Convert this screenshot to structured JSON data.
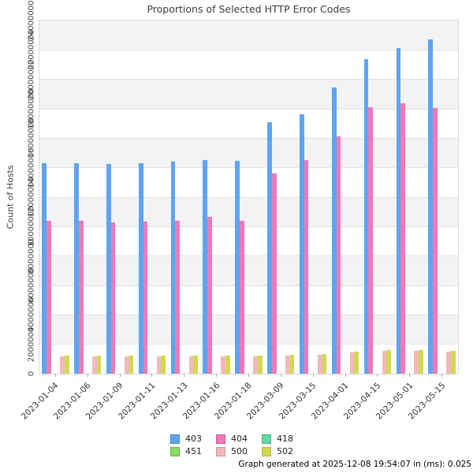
{
  "title": "Proportions of Selected HTTP Error Codes",
  "footer": "Graph generated at 2025-12-08 19:54:07 in (ms): 0.025",
  "chart_data": {
    "type": "bar",
    "title": "Proportions of Selected HTTP Error Codes",
    "xlabel": "",
    "ylabel": "Count of Hosts",
    "ylim": [
      0,
      24000000
    ],
    "ytick_step": 2000000,
    "grid": "horizontal gridlines with alternating gray bands",
    "legend_position": "bottom center, 2 rows x 3 columns",
    "categories": [
      "2023-01-04",
      "2023-01-06",
      "2023-01-09",
      "2023-01-11",
      "2023-01-13",
      "2023-01-16",
      "2023-01-18",
      "2023-03-09",
      "2023-03-15",
      "2023-04-01",
      "2023-04-15",
      "2023-05-01",
      "2023-05-15"
    ],
    "series": [
      {
        "name": "403",
        "color": "#5fa4f1",
        "border": "#4583c9",
        "values": [
          14300000,
          14300000,
          14250000,
          14300000,
          14400000,
          14500000,
          14450000,
          17100000,
          17600000,
          19450000,
          21400000,
          22150000,
          22700000
        ]
      },
      {
        "name": "404",
        "color": "#f279b6",
        "border": "#cc5e96",
        "values": [
          10400000,
          10400000,
          10300000,
          10350000,
          10400000,
          10650000,
          10400000,
          13600000,
          14500000,
          16150000,
          18100000,
          18350000,
          18050000
        ]
      },
      {
        "name": "418",
        "color": "#5fd99f",
        "border": "#45b57e",
        "values": [
          0,
          0,
          0,
          0,
          0,
          0,
          0,
          0,
          0,
          0,
          0,
          0,
          0
        ]
      },
      {
        "name": "451",
        "color": "#86db62",
        "border": "#67b847",
        "values": [
          0,
          0,
          0,
          0,
          0,
          0,
          0,
          0,
          0,
          0,
          0,
          0,
          0
        ]
      },
      {
        "name": "500",
        "color": "#f2b9bd",
        "border": "#cf989e",
        "values": [
          1200000,
          1200000,
          1200000,
          1200000,
          1200000,
          1200000,
          1200000,
          1250000,
          1300000,
          1450000,
          1550000,
          1550000,
          1500000
        ]
      },
      {
        "name": "502",
        "color": "#d3d94e",
        "border": "#b2b83a",
        "values": [
          1250000,
          1250000,
          1250000,
          1250000,
          1250000,
          1250000,
          1250000,
          1300000,
          1350000,
          1500000,
          1600000,
          1600000,
          1550000
        ]
      }
    ]
  },
  "colors": {
    "band_gray": "#f3f3f3",
    "gridline": "#e2e2e2",
    "plot_border": "#d9d9d9",
    "text": "#3c3c3c"
  }
}
